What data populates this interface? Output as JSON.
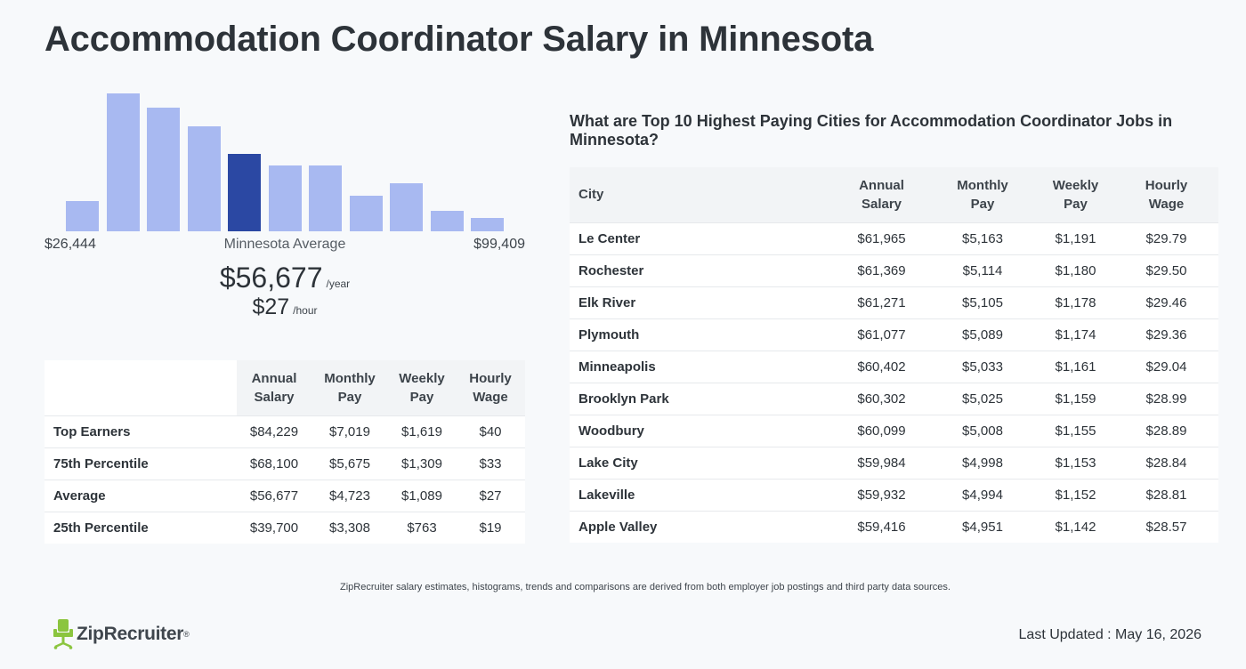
{
  "page": {
    "title": "Accommodation Coordinator Salary in Minnesota"
  },
  "histogram": {
    "min_label": "$26,444",
    "mid_label": "Minnesota Average",
    "max_label": "$99,409",
    "highlight_color": "#2b48a3",
    "bar_color": "#a8b9f1"
  },
  "chart_data": {
    "type": "bar",
    "title": "",
    "xlabel": "",
    "ylabel": "",
    "categories": [
      "1",
      "2",
      "3",
      "4",
      "5",
      "6",
      "7",
      "8",
      "9",
      "10",
      "11"
    ],
    "values": [
      33,
      152,
      136,
      116,
      85,
      73,
      73,
      39,
      53,
      23,
      15
    ],
    "highlight_index": 4,
    "ylim": [
      0,
      155
    ],
    "x_range_labels": [
      "$26,444",
      "$99,409"
    ]
  },
  "average": {
    "annual": "$56,677",
    "annual_unit": "/year",
    "hourly": "$27",
    "hourly_unit": "/hour"
  },
  "percentile_table": {
    "headers": [
      "Annual Salary",
      "Monthly Pay",
      "Weekly Pay",
      "Hourly Wage"
    ],
    "header_lines": [
      [
        "Annual",
        "Salary"
      ],
      [
        "Monthly",
        "Pay"
      ],
      [
        "Weekly",
        "Pay"
      ],
      [
        "Hourly",
        "Wage"
      ]
    ],
    "rows": [
      {
        "label": "Top Earners",
        "annual": "$84,229",
        "monthly": "$7,019",
        "weekly": "$1,619",
        "hourly": "$40"
      },
      {
        "label": "75th Percentile",
        "annual": "$68,100",
        "monthly": "$5,675",
        "weekly": "$1,309",
        "hourly": "$33"
      },
      {
        "label": "Average",
        "annual": "$56,677",
        "monthly": "$4,723",
        "weekly": "$1,089",
        "hourly": "$27"
      },
      {
        "label": "25th Percentile",
        "annual": "$39,700",
        "monthly": "$3,308",
        "weekly": "$763",
        "hourly": "$19"
      }
    ]
  },
  "cities": {
    "title": "What are Top 10 Highest Paying Cities for Accommodation Coordinator Jobs in Minnesota?",
    "header_city": "City",
    "header_lines": [
      [
        "Annual",
        "Salary"
      ],
      [
        "Monthly",
        "Pay"
      ],
      [
        "Weekly",
        "Pay"
      ],
      [
        "Hourly",
        "Wage"
      ]
    ],
    "rows": [
      {
        "city": "Le Center",
        "annual": "$61,965",
        "monthly": "$5,163",
        "weekly": "$1,191",
        "hourly": "$29.79"
      },
      {
        "city": "Rochester",
        "annual": "$61,369",
        "monthly": "$5,114",
        "weekly": "$1,180",
        "hourly": "$29.50"
      },
      {
        "city": "Elk River",
        "annual": "$61,271",
        "monthly": "$5,105",
        "weekly": "$1,178",
        "hourly": "$29.46"
      },
      {
        "city": "Plymouth",
        "annual": "$61,077",
        "monthly": "$5,089",
        "weekly": "$1,174",
        "hourly": "$29.36"
      },
      {
        "city": "Minneapolis",
        "annual": "$60,402",
        "monthly": "$5,033",
        "weekly": "$1,161",
        "hourly": "$29.04"
      },
      {
        "city": "Brooklyn Park",
        "annual": "$60,302",
        "monthly": "$5,025",
        "weekly": "$1,159",
        "hourly": "$28.99"
      },
      {
        "city": "Woodbury",
        "annual": "$60,099",
        "monthly": "$5,008",
        "weekly": "$1,155",
        "hourly": "$28.89"
      },
      {
        "city": "Lake City",
        "annual": "$59,984",
        "monthly": "$4,998",
        "weekly": "$1,153",
        "hourly": "$28.84"
      },
      {
        "city": "Lakeville",
        "annual": "$59,932",
        "monthly": "$4,994",
        "weekly": "$1,152",
        "hourly": "$28.81"
      },
      {
        "city": "Apple Valley",
        "annual": "$59,416",
        "monthly": "$4,951",
        "weekly": "$1,142",
        "hourly": "$28.57"
      }
    ]
  },
  "footer": {
    "disclaimer": "ZipRecruiter salary estimates, histograms, trends and comparisons are derived from both employer job postings and third party data sources.",
    "logo_text": "ZipRecruiter",
    "logo_tm": "®",
    "logo_icon": "chair-icon",
    "logo_color": "#8bc53f",
    "last_updated": "Last Updated : May 16, 2026"
  }
}
